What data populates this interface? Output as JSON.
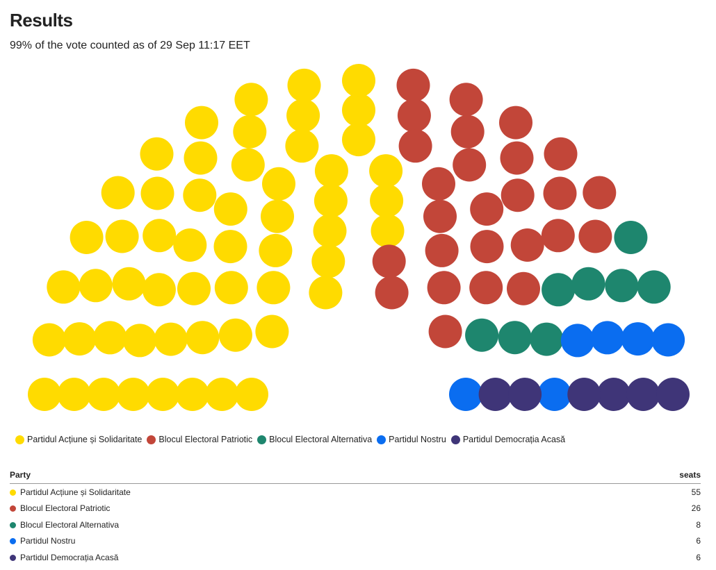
{
  "header": {
    "title": "Results",
    "subtitle": "99% of the vote counted as of 29 Sep 11:17 EET"
  },
  "table": {
    "col_party": "Party",
    "col_seats": "seats"
  },
  "chart_data": {
    "type": "parliament",
    "title": "Results",
    "subtitle": "99% of the vote counted as of 29 Sep 11:17 EET",
    "total_seats": 101,
    "legend_position": "bottom-left",
    "parties": [
      {
        "name": "Partidul Acțiune și Solidaritate",
        "seats": 55,
        "color": "#ffdb00"
      },
      {
        "name": "Blocul Electoral Patriotic",
        "seats": 26,
        "color": "#c24639"
      },
      {
        "name": "Blocul Electoral Alternativa",
        "seats": 8,
        "color": "#1e866e"
      },
      {
        "name": "Partidul Nostru",
        "seats": 6,
        "color": "#0a6df0"
      },
      {
        "name": "Partidul Democrația Acasă",
        "seats": 6,
        "color": "#3f3578"
      }
    ]
  }
}
